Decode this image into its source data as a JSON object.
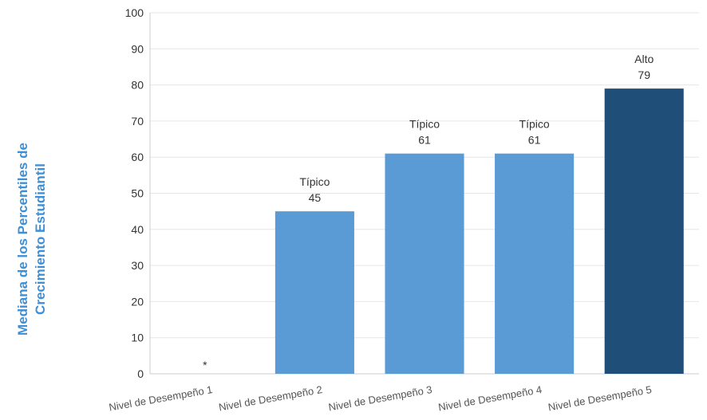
{
  "chart_data": {
    "type": "bar",
    "categories": [
      "Nivel de Desempeño 1",
      "Nivel de Desempeño 2",
      "Nivel de Desempeño 3",
      "Nivel de Desempeño 4",
      "Nivel de Desempeño 5"
    ],
    "values": [
      null,
      45,
      61,
      61,
      79
    ],
    "bar_labels": [
      "*",
      "Típico",
      "Típico",
      "Típico",
      "Alto"
    ],
    "bar_colors": [
      "#5b9bd5",
      "#5b9bd5",
      "#5b9bd5",
      "#5b9bd5",
      "#1f4e79"
    ],
    "ylabel_lines": [
      "Mediana de los Percentiles de",
      "Crecimiento Estudiantil"
    ],
    "ylim": [
      0,
      100
    ],
    "yticks": [
      0,
      10,
      20,
      30,
      40,
      50,
      60,
      70,
      80,
      90,
      100
    ],
    "grid": true,
    "colors": {
      "grid": "#e6e6e6",
      "axis": "#cccccc",
      "text": "#333333",
      "ylabel": "#3d8fd6"
    }
  }
}
